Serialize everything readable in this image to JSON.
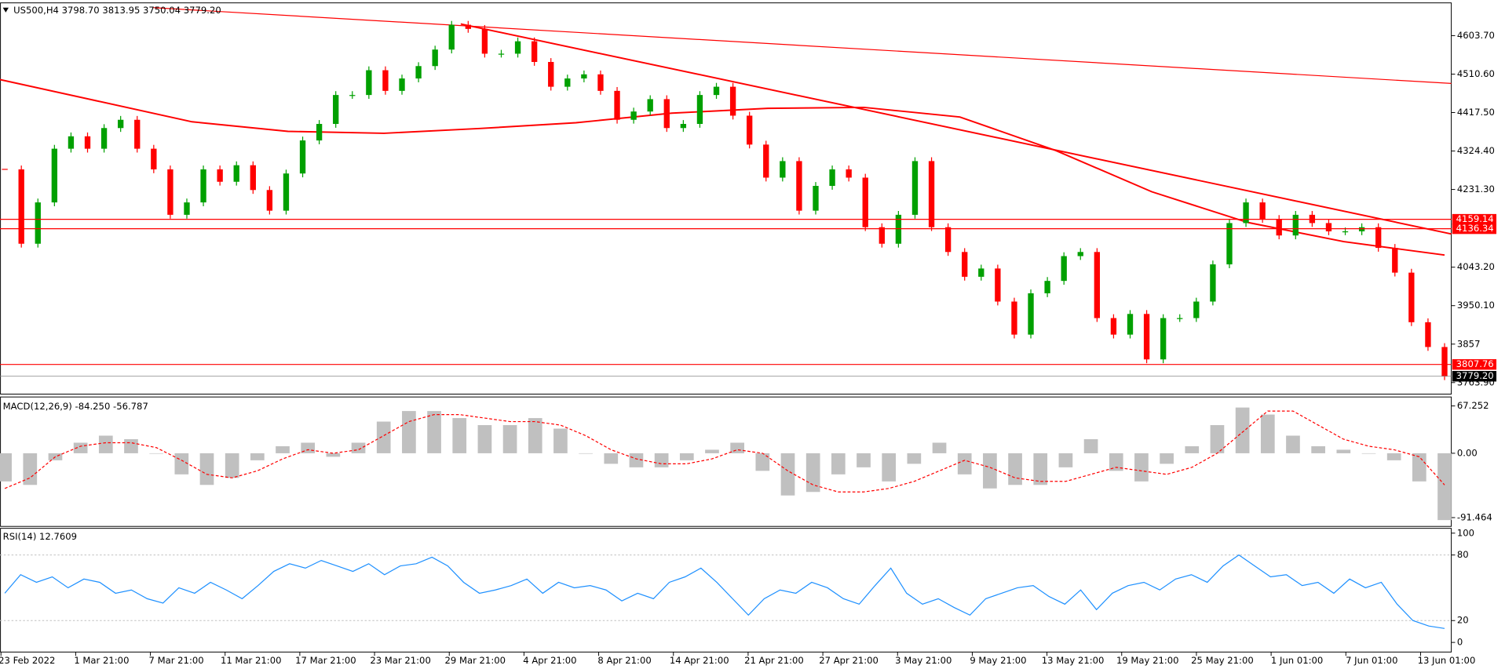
{
  "chart_data": [
    {
      "type": "candlestick",
      "title": "US500,H4  3798.70 3813.95 3750.04 3779.20",
      "up_color": "#00a000",
      "down_color": "#ff0000",
      "time_labels": [
        "23 Feb 2022",
        "1 Mar 21:00",
        "7 Mar 21:00",
        "11 Mar 21:00",
        "17 Mar 21:00",
        "23 Mar 21:00",
        "29 Mar 21:00",
        "4 Apr 21:00",
        "8 Apr 21:00",
        "14 Apr 21:00",
        "21 Apr 21:00",
        "27 Apr 21:00",
        "3 May 21:00",
        "9 May 21:00",
        "13 May 21:00",
        "19 May 21:00",
        "25 May 21:00",
        "1 Jun 01:00",
        "7 Jun 01:00",
        "13 Jun 01:00"
      ],
      "values": [
        4280,
        4100,
        4200,
        4330,
        4360,
        4330,
        4380,
        4400,
        4330,
        4280,
        4170,
        4200,
        4280,
        4250,
        4290,
        4230,
        4180,
        4270,
        4350,
        4390,
        4460,
        4460,
        4520,
        4470,
        4500,
        4530,
        4570,
        4630,
        4620,
        4560,
        4560,
        4590,
        4540,
        4480,
        4500,
        4510,
        4470,
        4400,
        4420,
        4450,
        4380,
        4390,
        4460,
        4480,
        4410,
        4340,
        4260,
        4300,
        4180,
        4240,
        4280,
        4260,
        4140,
        4100,
        4170,
        4300,
        4140,
        4080,
        4020,
        4040,
        3960,
        3880,
        3980,
        4010,
        4070,
        4080,
        3920,
        3880,
        3930,
        3820,
        3920,
        3920,
        3960,
        4050,
        4150,
        4200,
        4160,
        4120,
        4170,
        4150,
        4130,
        4130,
        4140,
        4090,
        4030,
        3910,
        3850,
        3779.2
      ],
      "ylim": [
        3736,
        4683
      ],
      "yticks": [
        {
          "value": 4603.7,
          "label": "4603.70"
        },
        {
          "value": 4510.6,
          "label": "4510.60"
        },
        {
          "value": 4417.5,
          "label": "4417.50"
        },
        {
          "value": 4324.4,
          "label": "4324.40"
        },
        {
          "value": 4231.3,
          "label": "4231.30"
        },
        {
          "value": 4043.2,
          "label": "4043.20"
        },
        {
          "value": 3950.1,
          "label": "3950.10"
        },
        3857,
        {
          "value": 3763.9,
          "label": "3763.90"
        }
      ],
      "levels": [
        4159.14,
        4136.34,
        3807.76
      ],
      "level_color": "#ff0000",
      "last": {
        "value": 3779.2,
        "label": "3779.20"
      }
    },
    {
      "type": "macd",
      "title": "MACD(12,26,9) -84.250 -56.787",
      "series": [
        {
          "color": "#c0c0c0",
          "values": [
            -40,
            -45,
            -10,
            15,
            25,
            20,
            0,
            -30,
            -45,
            -35,
            -10,
            10,
            15,
            -5,
            15,
            45,
            60,
            60,
            50,
            40,
            40,
            50,
            35,
            0,
            -15,
            -20,
            -20,
            -10,
            5,
            15,
            -25,
            -60,
            -55,
            -30,
            -20,
            -40,
            -15,
            15,
            -30,
            -50,
            -45,
            -45,
            -20,
            20,
            -25,
            -40,
            -15,
            10,
            40,
            65,
            55,
            25,
            10,
            5,
            0,
            -10,
            -40,
            -95
          ]
        },
        {
          "color": "#ff0000",
          "values": [
            -50,
            -35,
            -5,
            10,
            15,
            15,
            8,
            -10,
            -30,
            -35,
            -25,
            -8,
            5,
            0,
            5,
            25,
            45,
            55,
            55,
            50,
            45,
            45,
            40,
            25,
            5,
            -8,
            -15,
            -15,
            -8,
            5,
            0,
            -25,
            -45,
            -55,
            -55,
            -50,
            -40,
            -25,
            -10,
            -20,
            -35,
            -40,
            -40,
            -30,
            -20,
            -25,
            -30,
            -20,
            0,
            30,
            60,
            60,
            40,
            20,
            10,
            5,
            -5,
            -45
          ]
        }
      ],
      "ylim": [
        -104,
        80
      ],
      "yticks": [
        67.252,
        {
          "value": 0,
          "label": "0.00"
        },
        -91.464
      ]
    },
    {
      "type": "line",
      "title": "RSI(14) 12.7609",
      "color": "#1e90ff",
      "values": [
        45,
        62,
        55,
        60,
        50,
        58,
        55,
        45,
        48,
        40,
        36,
        50,
        45,
        55,
        48,
        40,
        52,
        65,
        72,
        68,
        75,
        70,
        65,
        72,
        62,
        70,
        72,
        78,
        70,
        55,
        45,
        48,
        52,
        58,
        45,
        55,
        50,
        52,
        48,
        38,
        45,
        40,
        55,
        60,
        68,
        55,
        40,
        25,
        40,
        48,
        45,
        55,
        50,
        40,
        35,
        52,
        68,
        45,
        35,
        40,
        32,
        25,
        40,
        45,
        50,
        52,
        42,
        35,
        48,
        30,
        45,
        52,
        55,
        48,
        58,
        62,
        55,
        70,
        80,
        70,
        60,
        62,
        52,
        55,
        45,
        58,
        50,
        55,
        35,
        20,
        15,
        12.7609
      ],
      "ylim": [
        -8.8,
        104.4
      ],
      "yticks": [
        100,
        80,
        20,
        0
      ]
    }
  ]
}
